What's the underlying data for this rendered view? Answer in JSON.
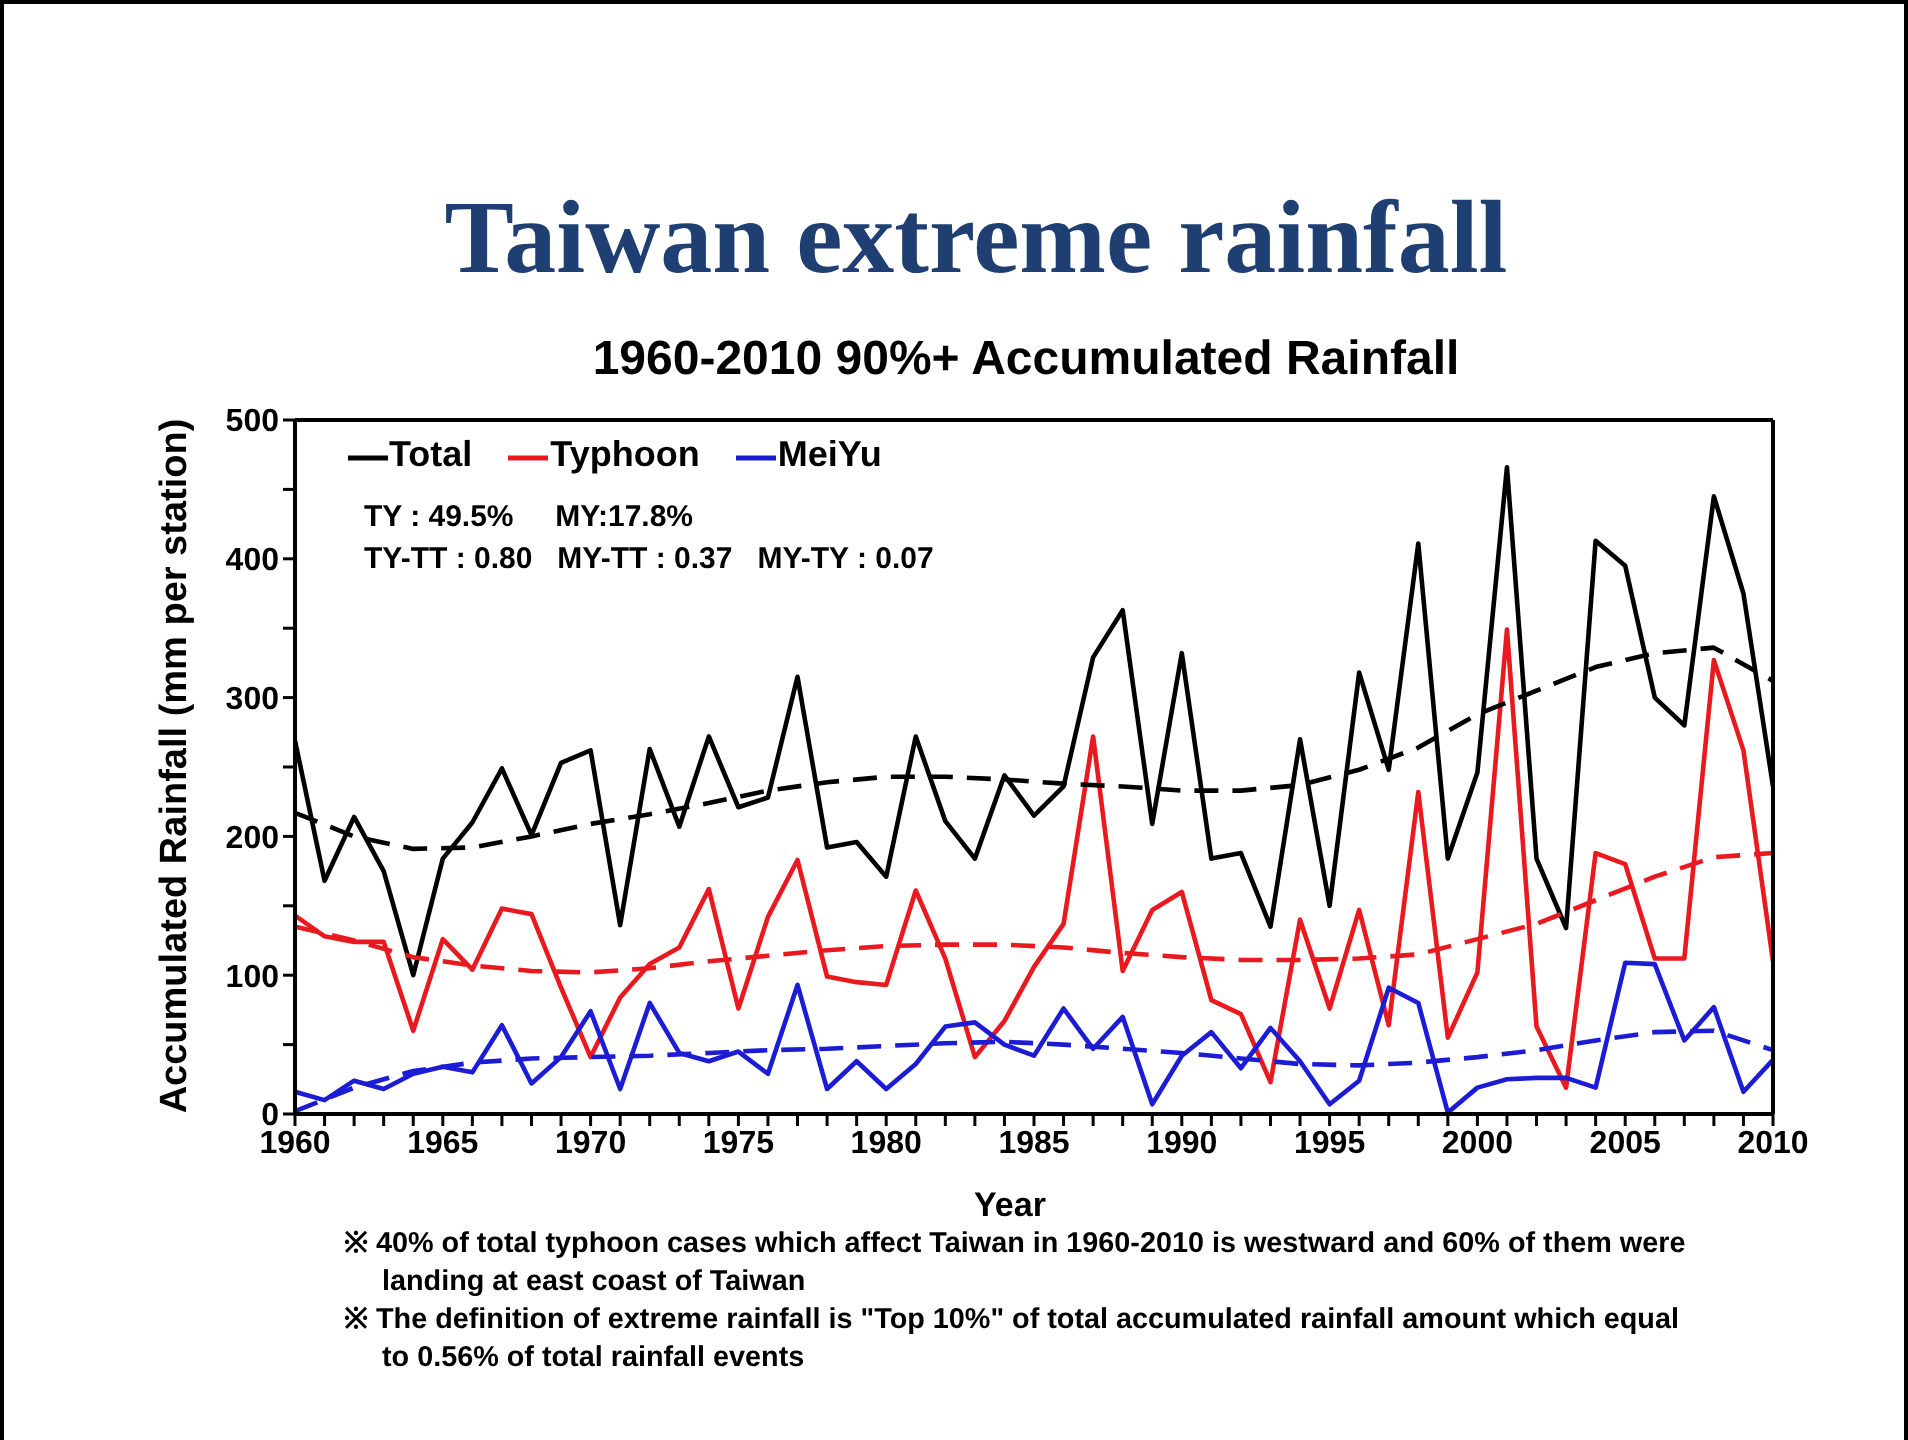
{
  "chart_data": {
    "type": "line",
    "title": "Taiwan extreme rainfall",
    "subtitle": "1960-2010 90%+ Accumulated Rainfall",
    "xlabel": "Year",
    "ylabel": "Accumulated Rainfall (mm per station)",
    "annotations": [
      "TY : 49.5%     MY:17.8%",
      "TY-TT : 0.80   MY-TT : 0.37   MY-TY : 0.07",
      "※ 40% of total typhoon cases which affect Taiwan in 1960-2010 is westward and 60% of them were landing at east coast of Taiwan",
      "※ The definition of extreme rainfall is \"Top 10%\" of total accumulated rainfall amount which equal to 0.56% of total rainfall events"
    ],
    "x": [
      1960,
      1961,
      1962,
      1963,
      1964,
      1965,
      1966,
      1967,
      1968,
      1969,
      1970,
      1971,
      1972,
      1973,
      1974,
      1975,
      1976,
      1977,
      1978,
      1979,
      1980,
      1981,
      1982,
      1983,
      1984,
      1985,
      1986,
      1987,
      1988,
      1989,
      1990,
      1991,
      1992,
      1993,
      1994,
      1995,
      1996,
      1997,
      1998,
      1999,
      2000,
      2001,
      2002,
      2003,
      2004,
      2005,
      2006,
      2007,
      2008,
      2009,
      2010
    ],
    "series": [
      {
        "name": "Total",
        "color": "#000000",
        "values": [
          269,
          168,
          214,
          175,
          100,
          184,
          210,
          249,
          201,
          253,
          262,
          136,
          263,
          207,
          272,
          221,
          228,
          315,
          192,
          196,
          171,
          272,
          211,
          184,
          244,
          215,
          236,
          329,
          363,
          209,
          332,
          184,
          188,
          135,
          270,
          150,
          318,
          248,
          411,
          184,
          246,
          466,
          184,
          134,
          413,
          395,
          300,
          280,
          445,
          375,
          236
        ]
      },
      {
        "name": "Typhoon",
        "color": "#e8191f",
        "values": [
          143,
          128,
          124,
          124,
          60,
          126,
          104,
          148,
          144,
          91,
          41,
          84,
          108,
          120,
          162,
          76,
          142,
          183,
          99,
          95,
          93,
          161,
          112,
          41,
          67,
          106,
          137,
          272,
          103,
          147,
          160,
          82,
          72,
          23,
          140,
          76,
          147,
          64,
          232,
          55,
          102,
          349,
          63,
          19,
          188,
          180,
          112,
          112,
          327,
          262,
          110
        ]
      },
      {
        "name": "MeiYu",
        "color": "#1c1cd4",
        "values": [
          16,
          10,
          24,
          18,
          29,
          34,
          30,
          64,
          22,
          41,
          74,
          18,
          80,
          44,
          38,
          45,
          29,
          93,
          18,
          38,
          18,
          36,
          63,
          66,
          50,
          42,
          76,
          47,
          70,
          7,
          42,
          59,
          33,
          62,
          38,
          7,
          24,
          91,
          80,
          1,
          19,
          25,
          26,
          26,
          19,
          109,
          108,
          53,
          77,
          16,
          39
        ]
      },
      {
        "type": "line",
        "line_style": "dashed",
        "color": "#000000",
        "x": [
          1960,
          1962,
          1964,
          1966,
          1968,
          1970,
          1972,
          1974,
          1976,
          1978,
          1980,
          1982,
          1984,
          1986,
          1988,
          1990,
          1992,
          1994,
          1996,
          1998,
          2000,
          2002,
          2004,
          2006,
          2008,
          2010
        ],
        "values": [
          217,
          200,
          191,
          192,
          200,
          209,
          216,
          224,
          233,
          239,
          243,
          243,
          241,
          238,
          236,
          233,
          233,
          237,
          248,
          264,
          288,
          305,
          322,
          332,
          336,
          312
        ]
      },
      {
        "type": "line",
        "line_style": "dashed",
        "color": "#e8191f",
        "x": [
          1960,
          1962,
          1964,
          1966,
          1968,
          1970,
          1972,
          1974,
          1976,
          1978,
          1980,
          1982,
          1984,
          1986,
          1988,
          1990,
          1992,
          1994,
          1996,
          1998,
          2000,
          2002,
          2004,
          2006,
          2008,
          2010
        ],
        "values": [
          135,
          125,
          113,
          107,
          103,
          102,
          105,
          110,
          114,
          118,
          121,
          122,
          122,
          120,
          116,
          113,
          111,
          111,
          112,
          115,
          126,
          137,
          154,
          171,
          185,
          188
        ]
      },
      {
        "type": "line",
        "line_style": "dashed",
        "color": "#1c1cd4",
        "x": [
          1960,
          1962,
          1964,
          1966,
          1968,
          1970,
          1972,
          1974,
          1976,
          1978,
          1980,
          1982,
          1984,
          1986,
          1988,
          1990,
          1992,
          1994,
          1996,
          1998,
          2000,
          2002,
          2004,
          2006,
          2008,
          2010
        ],
        "values": [
          2,
          19,
          31,
          37,
          40,
          41,
          42,
          44,
          46,
          47,
          49,
          51,
          52,
          50,
          47,
          44,
          40,
          36,
          35,
          37,
          41,
          46,
          53,
          59,
          60,
          46
        ]
      }
    ],
    "xlim": [
      1960,
      2010
    ],
    "xticks": [
      1960,
      {
        "value": 1961,
        "label": null
      },
      {
        "value": 1962,
        "label": null
      },
      {
        "value": 1963,
        "label": null
      },
      {
        "value": 1964,
        "label": null
      },
      1965,
      {
        "value": 1966,
        "label": null
      },
      {
        "value": 1967,
        "label": null
      },
      {
        "value": 1968,
        "label": null
      },
      {
        "value": 1969,
        "label": null
      },
      1970,
      {
        "value": 1971,
        "label": null
      },
      {
        "value": 1972,
        "label": null
      },
      {
        "value": 1973,
        "label": null
      },
      {
        "value": 1974,
        "label": null
      },
      1975,
      {
        "value": 1976,
        "label": null
      },
      {
        "value": 1977,
        "label": null
      },
      {
        "value": 1978,
        "label": null
      },
      {
        "value": 1979,
        "label": null
      },
      1980,
      {
        "value": 1981,
        "label": null
      },
      {
        "value": 1982,
        "label": null
      },
      {
        "value": 1983,
        "label": null
      },
      {
        "value": 1984,
        "label": null
      },
      1985,
      {
        "value": 1986,
        "label": null
      },
      {
        "value": 1987,
        "label": null
      },
      {
        "value": 1988,
        "label": null
      },
      {
        "value": 1989,
        "label": null
      },
      1990,
      {
        "value": 1991,
        "label": null
      },
      {
        "value": 1992,
        "label": null
      },
      {
        "value": 1993,
        "label": null
      },
      {
        "value": 1994,
        "label": null
      },
      1995,
      {
        "value": 1996,
        "label": null
      },
      {
        "value": 1997,
        "label": null
      },
      {
        "value": 1998,
        "label": null
      },
      {
        "value": 1999,
        "label": null
      },
      2000,
      {
        "value": 2001,
        "label": null
      },
      {
        "value": 2002,
        "label": null
      },
      {
        "value": 2003,
        "label": null
      },
      {
        "value": 2004,
        "label": null
      },
      2005,
      {
        "value": 2006,
        "label": null
      },
      {
        "value": 2007,
        "label": null
      },
      {
        "value": 2008,
        "label": null
      },
      {
        "value": 2009,
        "label": null
      },
      2010
    ],
    "ylim": [
      0,
      500
    ],
    "yticks": [
      0,
      {
        "value": 50,
        "label": null
      },
      100,
      {
        "value": 150,
        "label": null
      },
      200,
      {
        "value": 250,
        "label": null
      },
      300,
      {
        "value": 350,
        "label": null
      },
      400,
      {
        "value": 450,
        "label": null
      },
      500
    ],
    "legend": "top left",
    "marker": "none",
    "line_style": "solid"
  }
}
